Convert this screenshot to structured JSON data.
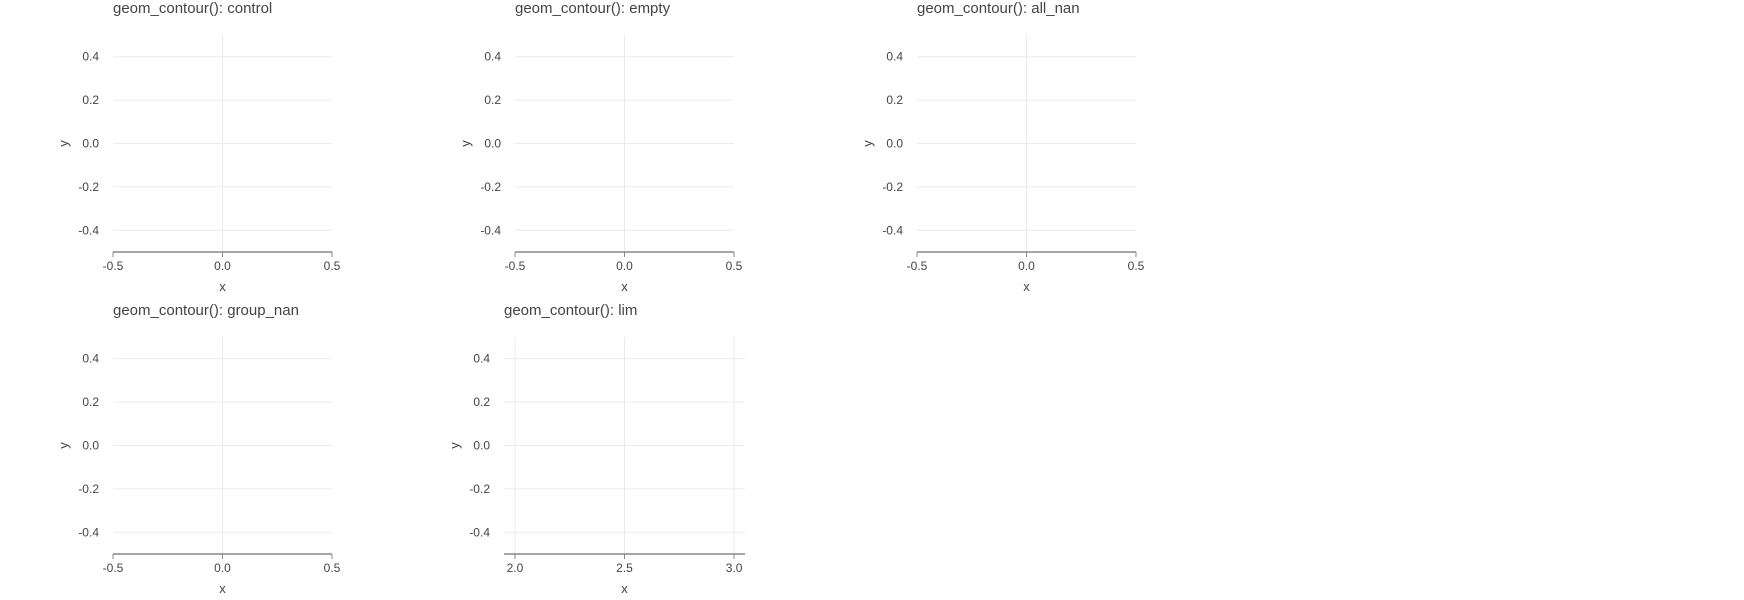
{
  "chart_data": [
    {
      "type": "scatter",
      "title": "geom_contour(): control",
      "xlabel": "x",
      "ylabel": "y",
      "xlim": [
        -0.5,
        0.5
      ],
      "ylim": [
        -0.5,
        0.5
      ],
      "xticks": [
        -0.5,
        0.0,
        0.5
      ],
      "xtick_labels": [
        "-0.5",
        "0.0",
        "0.5"
      ],
      "yticks": [
        -0.4,
        -0.2,
        0.0,
        0.2,
        0.4
      ],
      "ytick_labels": [
        "-0.4",
        "-0.2",
        "0.0",
        "0.2",
        "0.4"
      ],
      "series": [],
      "grid": true
    },
    {
      "type": "scatter",
      "title": "geom_contour(): empty",
      "xlabel": "x",
      "ylabel": "y",
      "xlim": [
        -0.5,
        0.5
      ],
      "ylim": [
        -0.5,
        0.5
      ],
      "xticks": [
        -0.5,
        0.0,
        0.5
      ],
      "xtick_labels": [
        "-0.5",
        "0.0",
        "0.5"
      ],
      "yticks": [
        -0.4,
        -0.2,
        0.0,
        0.2,
        0.4
      ],
      "ytick_labels": [
        "-0.4",
        "-0.2",
        "0.0",
        "0.2",
        "0.4"
      ],
      "series": [],
      "grid": true
    },
    {
      "type": "scatter",
      "title": "geom_contour(): all_nan",
      "xlabel": "x",
      "ylabel": "y",
      "xlim": [
        -0.5,
        0.5
      ],
      "ylim": [
        -0.5,
        0.5
      ],
      "xticks": [
        -0.5,
        0.0,
        0.5
      ],
      "xtick_labels": [
        "-0.5",
        "0.0",
        "0.5"
      ],
      "yticks": [
        -0.4,
        -0.2,
        0.0,
        0.2,
        0.4
      ],
      "ytick_labels": [
        "-0.4",
        "-0.2",
        "0.0",
        "0.2",
        "0.4"
      ],
      "series": [],
      "grid": true
    },
    {
      "type": "scatter",
      "title": "geom_contour(): group_nan",
      "xlabel": "x",
      "ylabel": "y",
      "xlim": [
        -0.5,
        0.5
      ],
      "ylim": [
        -0.5,
        0.5
      ],
      "xticks": [
        -0.5,
        0.0,
        0.5
      ],
      "xtick_labels": [
        "-0.5",
        "0.0",
        "0.5"
      ],
      "yticks": [
        -0.4,
        -0.2,
        0.0,
        0.2,
        0.4
      ],
      "ytick_labels": [
        "-0.4",
        "-0.2",
        "0.0",
        "0.2",
        "0.4"
      ],
      "series": [],
      "grid": true
    },
    {
      "type": "scatter",
      "title": "geom_contour(): lim",
      "xlabel": "x",
      "ylabel": "y",
      "xlim": [
        1.95,
        3.05
      ],
      "ylim": [
        -0.5,
        0.5
      ],
      "xticks": [
        2.0,
        2.5,
        3.0
      ],
      "xtick_labels": [
        "2.0",
        "2.5",
        "3.0"
      ],
      "yticks": [
        -0.4,
        -0.2,
        0.0,
        0.2,
        0.4
      ],
      "ytick_labels": [
        "-0.4",
        "-0.2",
        "0.0",
        "0.2",
        "0.4"
      ],
      "series": [],
      "grid": true
    }
  ]
}
